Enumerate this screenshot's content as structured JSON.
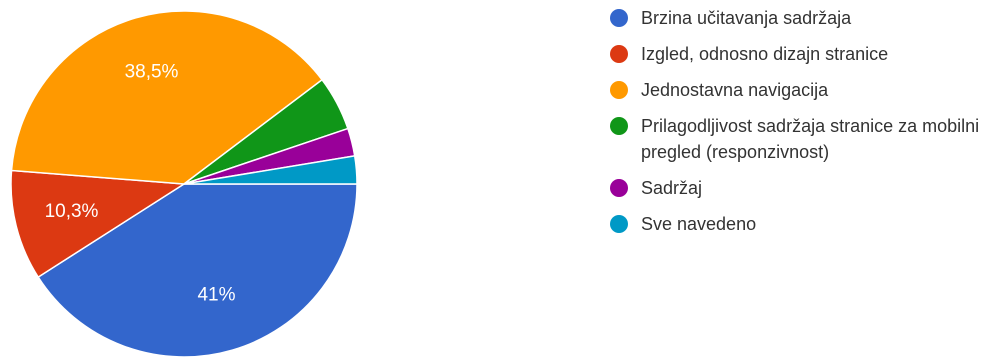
{
  "chart_data": {
    "type": "pie",
    "categories": [
      "Brzina učitavanja sadržaja",
      "Izgled, odnosno dizajn stranice",
      "Jednostavna navigacija",
      "Prilagodljivost sadržaja stranice za mobilni pregled (responzivnost)",
      "Sadržaj",
      "Sve navedeno"
    ],
    "values": [
      41,
      10.3,
      38.5,
      5.1,
      2.6,
      2.6
    ],
    "data_labels": [
      "41%",
      "10,3%",
      "38,5%",
      "",
      "",
      ""
    ],
    "colors": [
      "#3366cc",
      "#dc3912",
      "#ff9900",
      "#109618",
      "#990099",
      "#0099c6"
    ],
    "start_angle_deg": 90,
    "direction": "clockwise",
    "legend_position": "right"
  }
}
